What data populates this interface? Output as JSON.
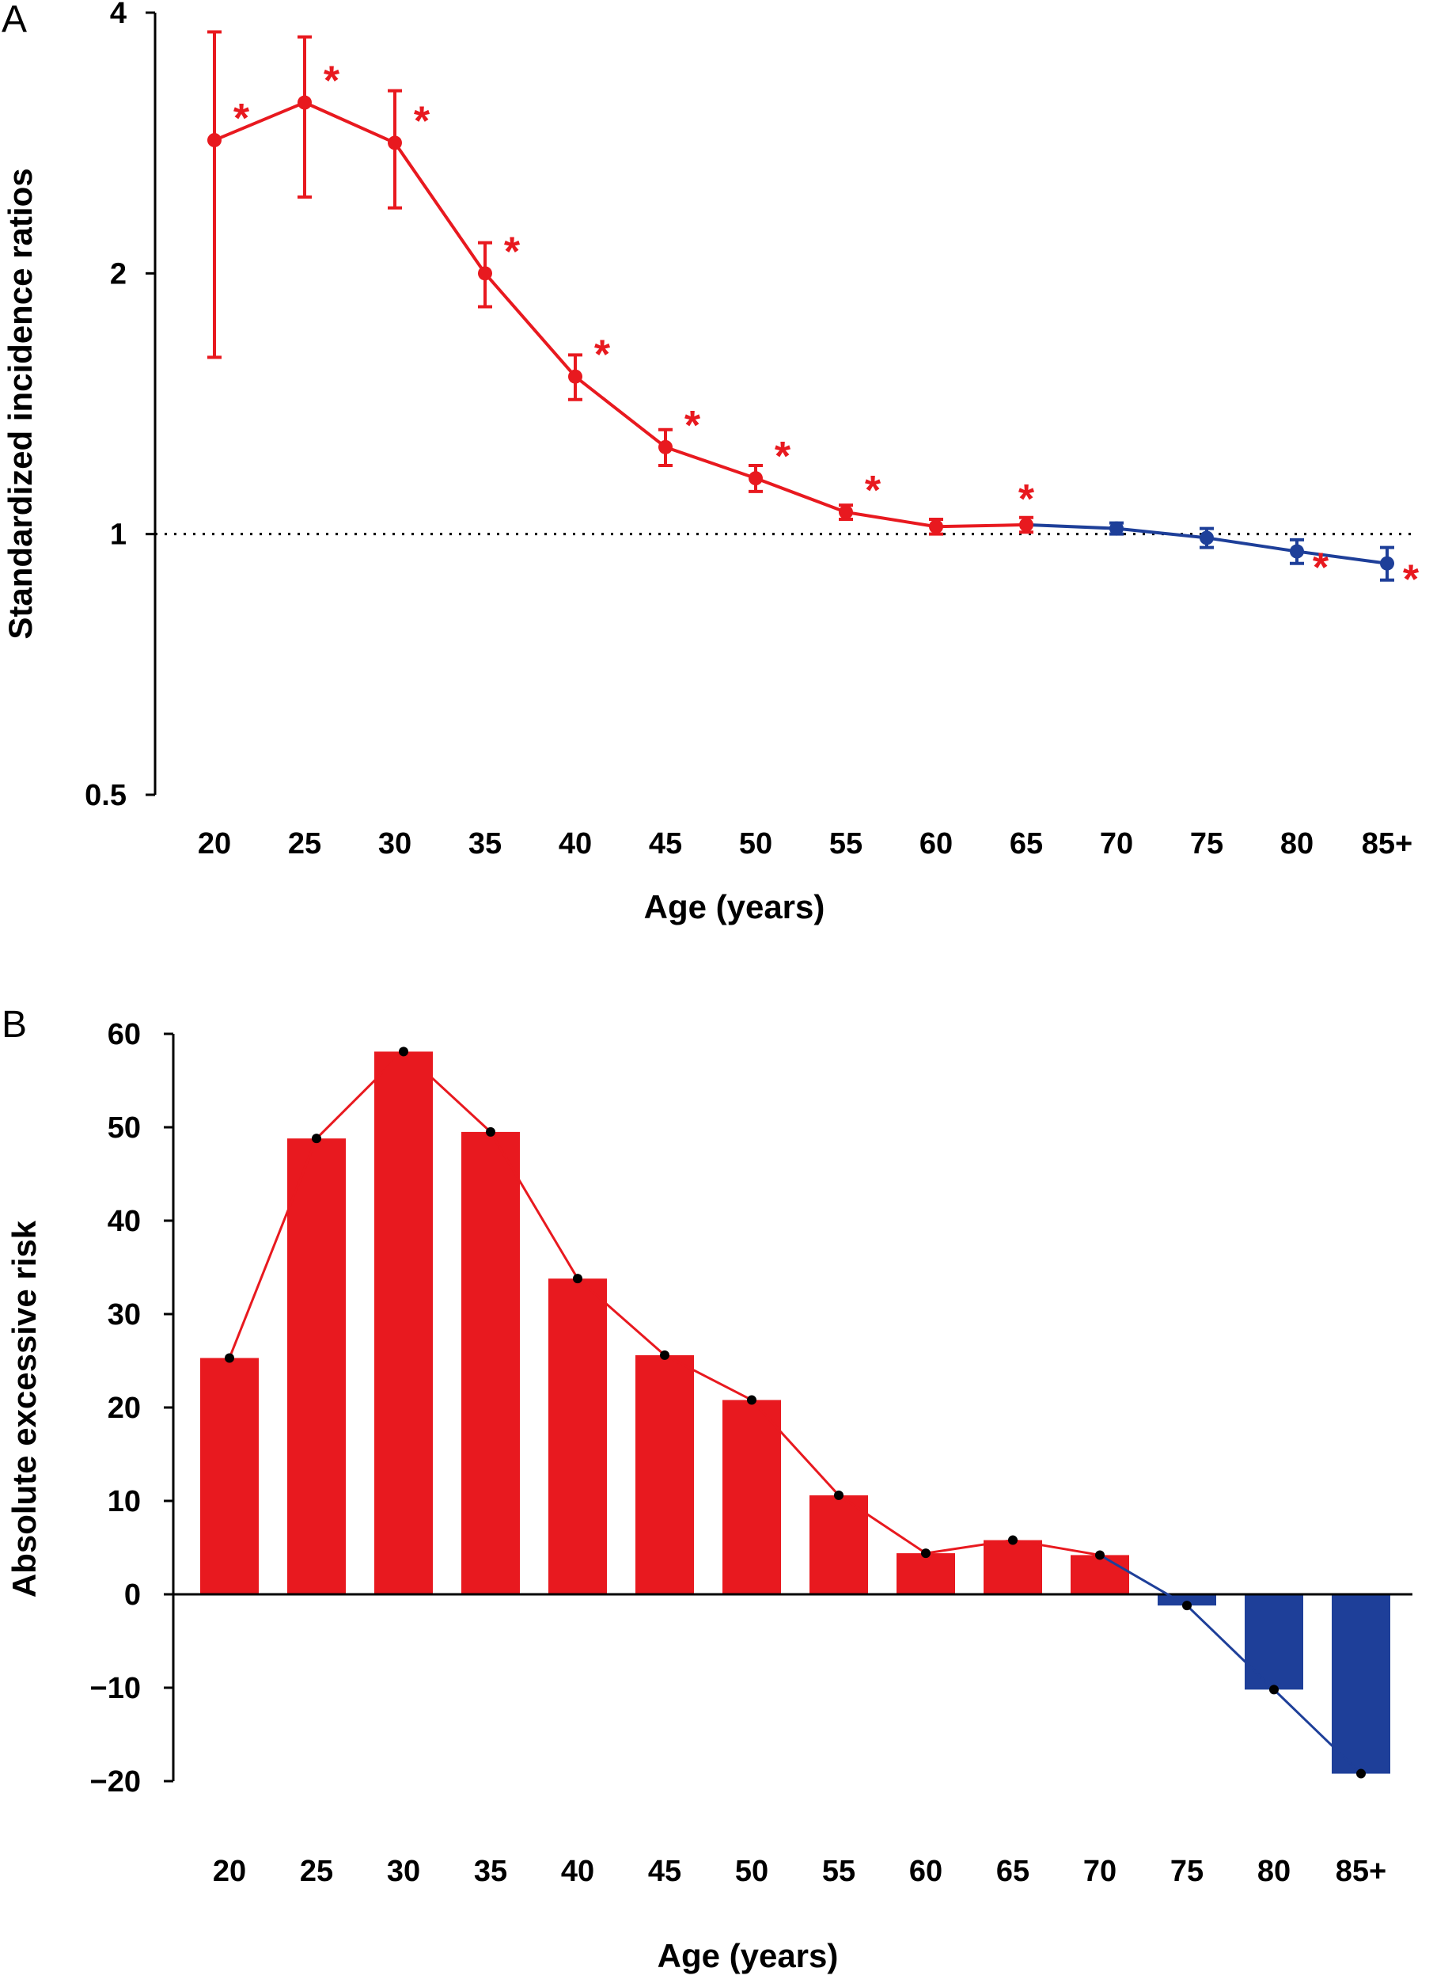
{
  "colors": {
    "red": "#e8191f",
    "blue": "#1e3f99",
    "black": "#000000"
  },
  "chart_data": [
    {
      "panel": "A",
      "type": "line",
      "categories": [
        "20",
        "25",
        "30",
        "35",
        "40",
        "45",
        "50",
        "55",
        "60",
        "65",
        "70",
        "75",
        "80",
        "85+"
      ],
      "values": [
        2.85,
        3.15,
        2.83,
        2.0,
        1.52,
        1.26,
        1.16,
        1.06,
        1.02,
        1.025,
        1.015,
        0.99,
        0.955,
        0.925
      ],
      "ci_low": [
        1.6,
        2.45,
        2.38,
        1.83,
        1.43,
        1.2,
        1.12,
        1.04,
        1.0,
        1.005,
        1.0,
        0.965,
        0.925,
        0.885
      ],
      "ci_high": [
        3.8,
        3.75,
        3.25,
        2.17,
        1.61,
        1.32,
        1.2,
        1.08,
        1.04,
        1.045,
        1.03,
        1.015,
        0.985,
        0.965
      ],
      "significant": [
        true,
        true,
        true,
        true,
        true,
        true,
        true,
        true,
        false,
        true,
        false,
        false,
        true,
        true
      ],
      "colors": [
        "red",
        "red",
        "red",
        "red",
        "red",
        "red",
        "red",
        "red",
        "red",
        "red",
        "blue",
        "blue",
        "blue",
        "blue"
      ],
      "ylabel": "Standardized incidence ratios",
      "xlabel": "Age (years)",
      "yscale": "log2",
      "ylim": [
        0.5,
        4
      ],
      "yticks": [
        "0.5",
        "1",
        "2",
        "4"
      ],
      "reference_line": 1,
      "significance_marker": "*"
    },
    {
      "panel": "B",
      "type": "bar",
      "categories": [
        "20",
        "25",
        "30",
        "35",
        "40",
        "45",
        "50",
        "55",
        "60",
        "65",
        "70",
        "75",
        "80",
        "85+"
      ],
      "values": [
        25.3,
        48.8,
        58.1,
        49.5,
        33.8,
        25.6,
        20.8,
        10.6,
        4.4,
        5.8,
        4.2,
        -1.2,
        -10.2,
        -19.2
      ],
      "colors": [
        "red",
        "red",
        "red",
        "red",
        "red",
        "red",
        "red",
        "red",
        "red",
        "red",
        "red",
        "blue",
        "blue",
        "blue"
      ],
      "ylabel": "Absolute excessive risk",
      "xlabel": "Age (years)",
      "ylim": [
        -20,
        60
      ],
      "yticks": [
        "−20",
        "−10",
        "0",
        "10",
        "20",
        "30",
        "40",
        "50",
        "60"
      ]
    }
  ]
}
